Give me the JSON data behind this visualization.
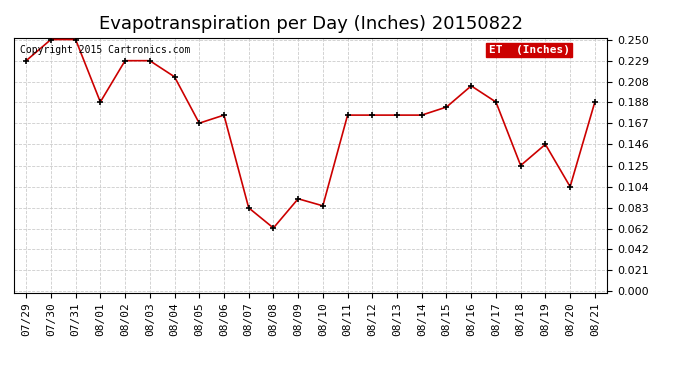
{
  "title": "Evapotranspiration per Day (Inches) 20150822",
  "copyright_text": "Copyright 2015 Cartronics.com",
  "legend_label": "ET  (Inches)",
  "legend_bg": "#cc0000",
  "legend_text_color": "#ffffff",
  "line_color": "#cc0000",
  "marker_color": "#000000",
  "bg_color": "#ffffff",
  "grid_color": "#cccccc",
  "dates": [
    "07/29",
    "07/30",
    "07/31",
    "08/01",
    "08/02",
    "08/03",
    "08/04",
    "08/05",
    "08/06",
    "08/07",
    "08/08",
    "08/09",
    "08/10",
    "08/11",
    "08/12",
    "08/13",
    "08/14",
    "08/15",
    "08/16",
    "08/17",
    "08/18",
    "08/19",
    "08/20",
    "08/21"
  ],
  "values": [
    0.229,
    0.25,
    0.25,
    0.188,
    0.229,
    0.229,
    0.213,
    0.167,
    0.175,
    0.083,
    0.063,
    0.092,
    0.085,
    0.175,
    0.175,
    0.175,
    0.175,
    0.183,
    0.204,
    0.188,
    0.125,
    0.146,
    0.104,
    0.188
  ],
  "ylim": [
    0.0,
    0.25
  ],
  "yticks": [
    0.0,
    0.021,
    0.042,
    0.062,
    0.083,
    0.104,
    0.125,
    0.146,
    0.167,
    0.188,
    0.208,
    0.229,
    0.25
  ],
  "title_fontsize": 13,
  "tick_fontsize": 8,
  "copyright_fontsize": 7,
  "legend_fontsize": 8
}
